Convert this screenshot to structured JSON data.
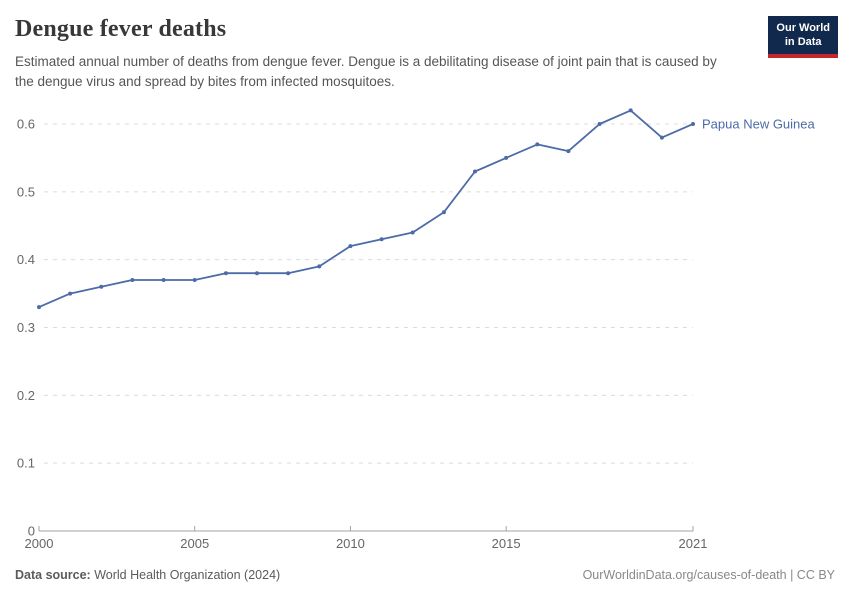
{
  "header": {
    "title": "Dengue fever deaths",
    "subtitle": "Estimated annual number of deaths from dengue fever. Dengue is a debilitating disease of joint pain that is caused by the dengue virus and spread by bites from infected mosquitoes.",
    "logo": {
      "line1": "Our World",
      "line2": "in Data",
      "bg_color": "#12294e",
      "accent_color": "#c2282e",
      "text_color": "#ffffff"
    }
  },
  "chart_data": {
    "type": "line",
    "title": "Dengue fever deaths",
    "xlabel": "",
    "ylabel": "",
    "x": [
      2000,
      2001,
      2002,
      2003,
      2004,
      2005,
      2006,
      2007,
      2008,
      2009,
      2010,
      2011,
      2012,
      2013,
      2014,
      2015,
      2016,
      2017,
      2018,
      2019,
      2020,
      2021
    ],
    "series": [
      {
        "name": "Papua New Guinea",
        "color": "#4c6ba7",
        "values": [
          0.33,
          0.35,
          0.36,
          0.37,
          0.37,
          0.37,
          0.38,
          0.38,
          0.38,
          0.39,
          0.42,
          0.43,
          0.44,
          0.47,
          0.53,
          0.55,
          0.57,
          0.56,
          0.6,
          0.62,
          0.58,
          0.6
        ]
      }
    ],
    "x_ticks": [
      2000,
      2005,
      2010,
      2015,
      2021
    ],
    "y_ticks": [
      0,
      0.1,
      0.2,
      0.3,
      0.4,
      0.5,
      0.6
    ],
    "xlim": [
      2000,
      2021
    ],
    "ylim": [
      0,
      0.62
    ],
    "grid": "horizontal-dashed",
    "legend_position": "end-of-line-label",
    "grid_color": "#dcdcdc",
    "axis_color": "#a3a3a3",
    "tick_label_color": "#666666"
  },
  "footer": {
    "source_label": "Data source:",
    "source_value": "World Health Organization (2024)",
    "attribution": "OurWorldinData.org/causes-of-death | CC BY"
  }
}
